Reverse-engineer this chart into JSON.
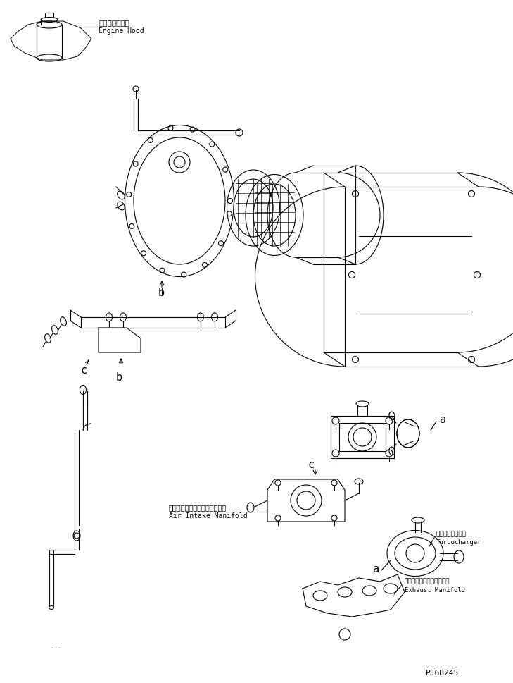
{
  "title": "",
  "bg_color": "#ffffff",
  "line_color": "#000000",
  "fig_width": 7.29,
  "fig_height": 9.69,
  "dpi": 100,
  "part_code": "PJ6B245",
  "labels": {
    "engine_hood_jp": "エンジンフード",
    "engine_hood_en": "Engine Hood",
    "air_intake_jp": "エアーインテークマニホールド",
    "air_intake_en": "Air Intake Manifold",
    "turbocharger_jp": "ターボチャージャ",
    "turbocharger_en": "Turbocharger",
    "exhaust_jp": "エキゾーストマニホールド",
    "exhaust_en": "Exhaust Manifold"
  }
}
